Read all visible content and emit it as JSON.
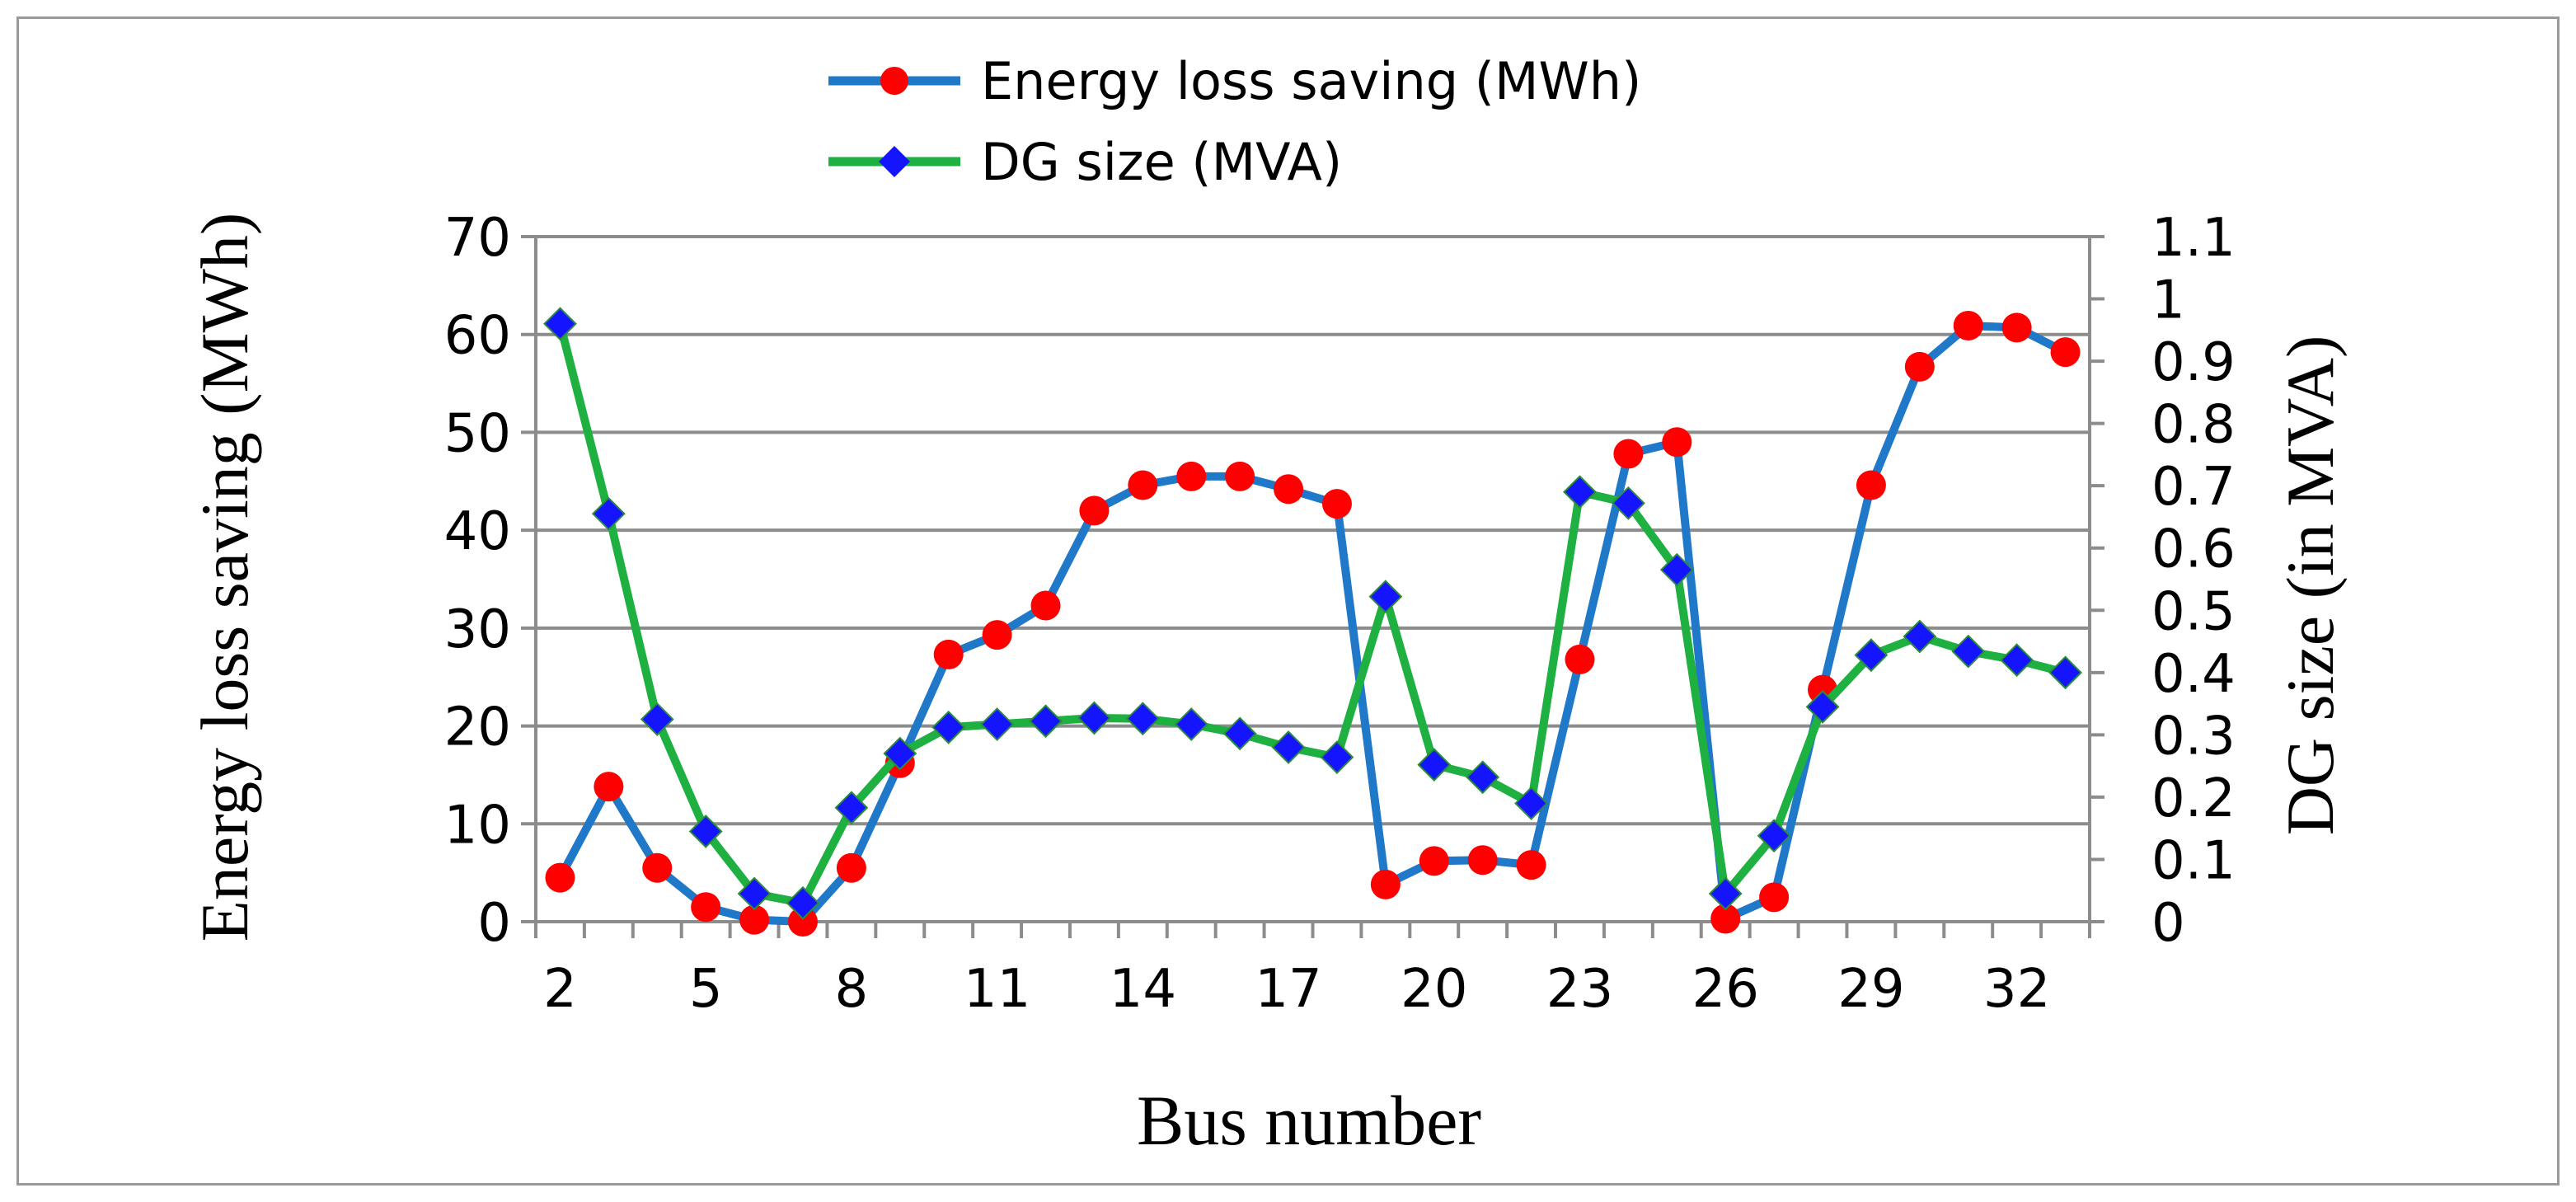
{
  "chart_data": {
    "type": "line",
    "title": "",
    "xlabel": "Bus number",
    "ylabel_left": "Energy loss saving (MWh)",
    "ylabel_right": "DG size (in MVA)",
    "x": [
      2,
      3,
      4,
      5,
      6,
      7,
      8,
      9,
      10,
      11,
      12,
      13,
      14,
      15,
      16,
      17,
      18,
      19,
      20,
      21,
      22,
      23,
      24,
      25,
      26,
      27,
      28,
      29,
      30,
      31,
      32,
      33
    ],
    "x_tick_labels": [
      "2",
      "5",
      "8",
      "11",
      "14",
      "17",
      "20",
      "23",
      "26",
      "29",
      "32"
    ],
    "x_tick_values": [
      2,
      5,
      8,
      11,
      14,
      17,
      20,
      23,
      26,
      29,
      32
    ],
    "ylim_left": [
      0,
      70
    ],
    "y_left_ticks": [
      "0",
      "10",
      "20",
      "30",
      "40",
      "50",
      "60",
      "70"
    ],
    "y_left_tick_values": [
      0,
      10,
      20,
      30,
      40,
      50,
      60,
      70
    ],
    "ylim_right": [
      0,
      1.1
    ],
    "y_right_ticks": [
      "0",
      "0.1",
      "0.2",
      "0.3",
      "0.4",
      "0.5",
      "0.6",
      "0.7",
      "0.8",
      "0.9",
      "1",
      "1.1"
    ],
    "y_right_tick_values": [
      0,
      0.1,
      0.2,
      0.3,
      0.4,
      0.5,
      0.6,
      0.7,
      0.8,
      0.9,
      1.0,
      1.1
    ],
    "grid": true,
    "legend_position": "top-center",
    "series": [
      {
        "name": "Energy loss saving (MWh)",
        "axis": "left",
        "color": "#1f78c8",
        "marker": "circle",
        "marker_color": "#ff0000",
        "values": [
          4.5,
          13.8,
          5.5,
          1.5,
          0.2,
          0.0,
          5.5,
          16.2,
          27.3,
          29.3,
          32.3,
          42.0,
          44.6,
          45.5,
          45.5,
          44.2,
          42.7,
          3.8,
          6.2,
          6.3,
          5.8,
          26.8,
          47.8,
          49.0,
          0.3,
          2.5,
          23.7,
          44.6,
          56.7,
          60.9,
          60.7,
          58.2
        ]
      },
      {
        "name": "DG size (MVA)",
        "axis": "right",
        "color": "#1eb040",
        "marker": "diamond",
        "marker_color": "#1414ff",
        "values": [
          0.96,
          0.655,
          0.325,
          0.145,
          0.045,
          0.03,
          0.183,
          0.27,
          0.312,
          0.317,
          0.322,
          0.327,
          0.326,
          0.317,
          0.302,
          0.28,
          0.264,
          0.522,
          0.252,
          0.232,
          0.19,
          0.69,
          0.672,
          0.565,
          0.045,
          0.138,
          0.345,
          0.428,
          0.458,
          0.434,
          0.42,
          0.4
        ]
      }
    ]
  }
}
